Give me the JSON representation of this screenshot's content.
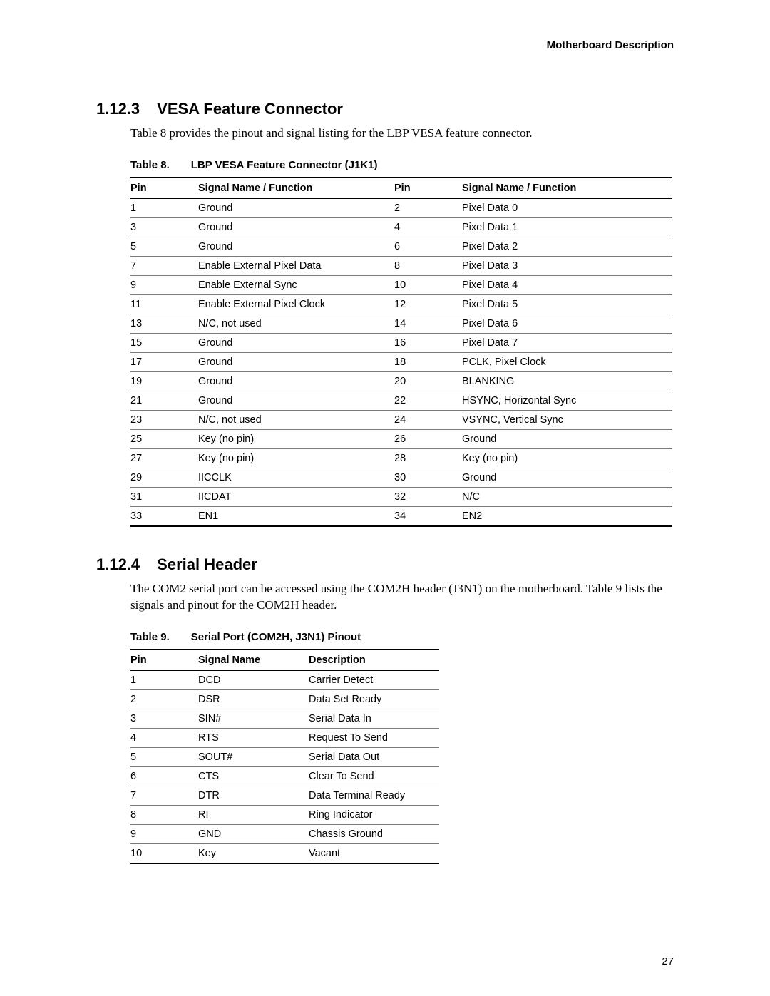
{
  "header": {
    "title": "Motherboard Description"
  },
  "section1": {
    "number": "1.12.3",
    "title": "VESA Feature Connector",
    "paragraph": "Table 8 provides the pinout and signal listing for the LBP VESA feature connector."
  },
  "table8": {
    "caption_label": "Table 8.",
    "caption_title": "LBP VESA Feature Connector (J1K1)",
    "columns": [
      "Pin",
      "Signal Name / Function",
      "Pin",
      "Signal Name / Function"
    ],
    "rows": [
      [
        "1",
        "Ground",
        "2",
        "Pixel Data 0"
      ],
      [
        "3",
        "Ground",
        "4",
        "Pixel Data 1"
      ],
      [
        "5",
        "Ground",
        "6",
        "Pixel Data 2"
      ],
      [
        "7",
        "Enable External Pixel Data",
        "8",
        "Pixel Data 3"
      ],
      [
        "9",
        "Enable External Sync",
        "10",
        "Pixel Data 4"
      ],
      [
        "11",
        "Enable External Pixel Clock",
        "12",
        "Pixel Data 5"
      ],
      [
        "13",
        "N/C, not used",
        "14",
        "Pixel Data 6"
      ],
      [
        "15",
        "Ground",
        "16",
        "Pixel Data 7"
      ],
      [
        "17",
        "Ground",
        "18",
        "PCLK, Pixel Clock"
      ],
      [
        "19",
        "Ground",
        "20",
        "BLANKING"
      ],
      [
        "21",
        "Ground",
        "22",
        "HSYNC, Horizontal Sync"
      ],
      [
        "23",
        "N/C, not used",
        "24",
        "VSYNC, Vertical Sync"
      ],
      [
        "25",
        "Key (no pin)",
        "26",
        "Ground"
      ],
      [
        "27",
        "Key (no pin)",
        "28",
        "Key (no pin)"
      ],
      [
        "29",
        "IICCLK",
        "30",
        "Ground"
      ],
      [
        "31",
        "IICDAT",
        "32",
        "N/C"
      ],
      [
        "33",
        "EN1",
        "34",
        "EN2"
      ]
    ]
  },
  "section2": {
    "number": "1.12.4",
    "title": "Serial Header",
    "paragraph": "The COM2 serial port can be accessed using the COM2H header (J3N1) on the motherboard. Table 9 lists the signals and pinout for the COM2H header."
  },
  "table9": {
    "caption_label": "Table 9.",
    "caption_title": "Serial Port (COM2H, J3N1) Pinout",
    "columns": [
      "Pin",
      "Signal Name",
      "Description"
    ],
    "rows": [
      [
        "1",
        "DCD",
        "Carrier Detect"
      ],
      [
        "2",
        "DSR",
        "Data Set Ready"
      ],
      [
        "3",
        "SIN#",
        "Serial Data In"
      ],
      [
        "4",
        "RTS",
        "Request To Send"
      ],
      [
        "5",
        "SOUT#",
        "Serial Data Out"
      ],
      [
        "6",
        "CTS",
        "Clear To Send"
      ],
      [
        "7",
        "DTR",
        "Data Terminal Ready"
      ],
      [
        "8",
        "RI",
        "Ring Indicator"
      ],
      [
        "9",
        "GND",
        "Chassis Ground"
      ],
      [
        "10",
        "Key",
        "Vacant"
      ]
    ]
  },
  "footer": {
    "page_number": "27"
  }
}
